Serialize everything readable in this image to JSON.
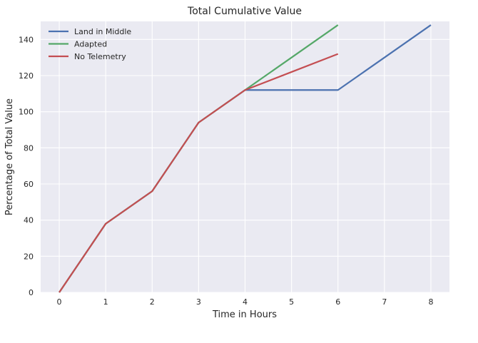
{
  "chart_data": {
    "type": "line",
    "title": "Total Cumulative Value",
    "xlabel": "Time in Hours",
    "ylabel": "Percentage of Total Value",
    "xlim": [
      -0.4,
      8.4
    ],
    "ylim": [
      0,
      150
    ],
    "xticks": [
      0,
      1,
      2,
      3,
      4,
      5,
      6,
      7,
      8
    ],
    "yticks": [
      0,
      20,
      40,
      60,
      80,
      100,
      120,
      140
    ],
    "grid": true,
    "legend_position": "top-left",
    "series": [
      {
        "name": "Land in Middle",
        "color": "#4c72b0",
        "x": [
          0,
          1,
          2,
          3,
          4,
          5,
          6,
          7,
          8
        ],
        "y": [
          0,
          38,
          56,
          94,
          112,
          112,
          112,
          130,
          148
        ]
      },
      {
        "name": "Adapted",
        "color": "#55a868",
        "x": [
          0,
          1,
          2,
          3,
          4,
          5,
          6
        ],
        "y": [
          0,
          38,
          56,
          94,
          112,
          130,
          148
        ]
      },
      {
        "name": "No Telemetry",
        "color": "#c44e52",
        "x": [
          0,
          1,
          2,
          3,
          4,
          5,
          6
        ],
        "y": [
          0,
          38,
          56,
          94,
          112,
          122,
          132
        ]
      }
    ]
  }
}
